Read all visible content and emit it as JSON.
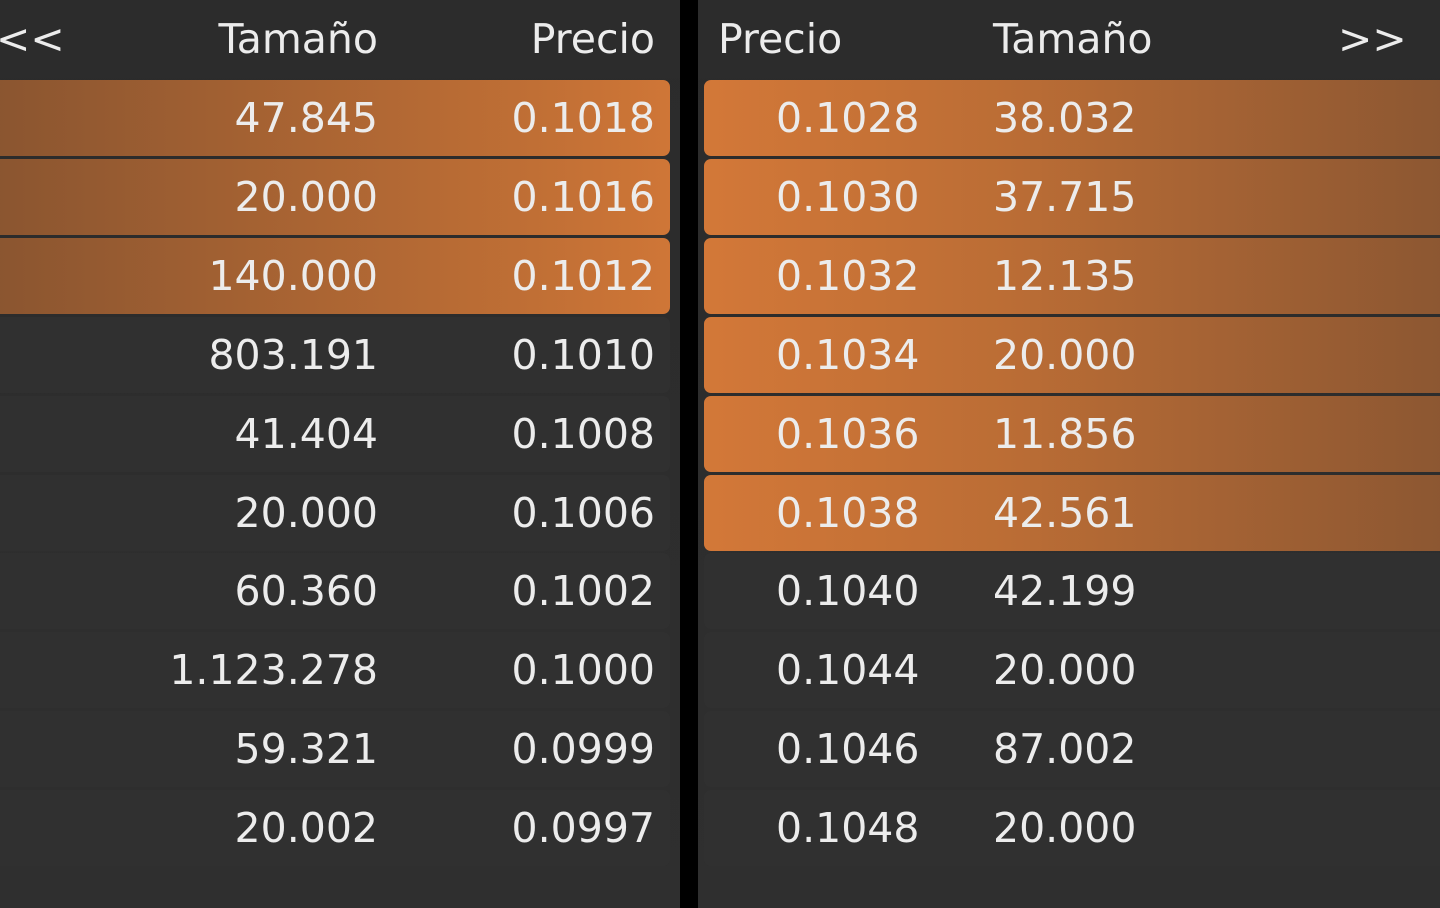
{
  "bids": {
    "nav": "<<",
    "headers": {
      "size": "Tamaño",
      "price": "Precio"
    },
    "rows": [
      {
        "size": "47.845",
        "price": "0.1018",
        "highlighted": true
      },
      {
        "size": "20.000",
        "price": "0.1016",
        "highlighted": true
      },
      {
        "size": "140.000",
        "price": "0.1012",
        "highlighted": true
      },
      {
        "size": "803.191",
        "price": "0.1010",
        "highlighted": false
      },
      {
        "size": "41.404",
        "price": "0.1008",
        "highlighted": false
      },
      {
        "size": "20.000",
        "price": "0.1006",
        "highlighted": false
      },
      {
        "size": "60.360",
        "price": "0.1002",
        "highlighted": false
      },
      {
        "size": "1.123.278",
        "price": "0.1000",
        "highlighted": false
      },
      {
        "size": "59.321",
        "price": "0.0999",
        "highlighted": false
      },
      {
        "size": "20.002",
        "price": "0.0997",
        "highlighted": false
      }
    ]
  },
  "asks": {
    "nav": ">>",
    "headers": {
      "price": "Precio",
      "size": "Tamaño"
    },
    "rows": [
      {
        "price": "0.1028",
        "size": "38.032",
        "highlighted": true
      },
      {
        "price": "0.1030",
        "size": "37.715",
        "highlighted": true
      },
      {
        "price": "0.1032",
        "size": "12.135",
        "highlighted": true
      },
      {
        "price": "0.1034",
        "size": "20.000",
        "highlighted": true
      },
      {
        "price": "0.1036",
        "size": "11.856",
        "highlighted": true
      },
      {
        "price": "0.1038",
        "size": "42.561",
        "highlighted": true
      },
      {
        "price": "0.1040",
        "size": "42.199",
        "highlighted": false
      },
      {
        "price": "0.1044",
        "size": "20.000",
        "highlighted": false
      },
      {
        "price": "0.1046",
        "size": "87.002",
        "highlighted": false
      },
      {
        "price": "0.1048",
        "size": "20.000",
        "highlighted": false
      }
    ]
  }
}
